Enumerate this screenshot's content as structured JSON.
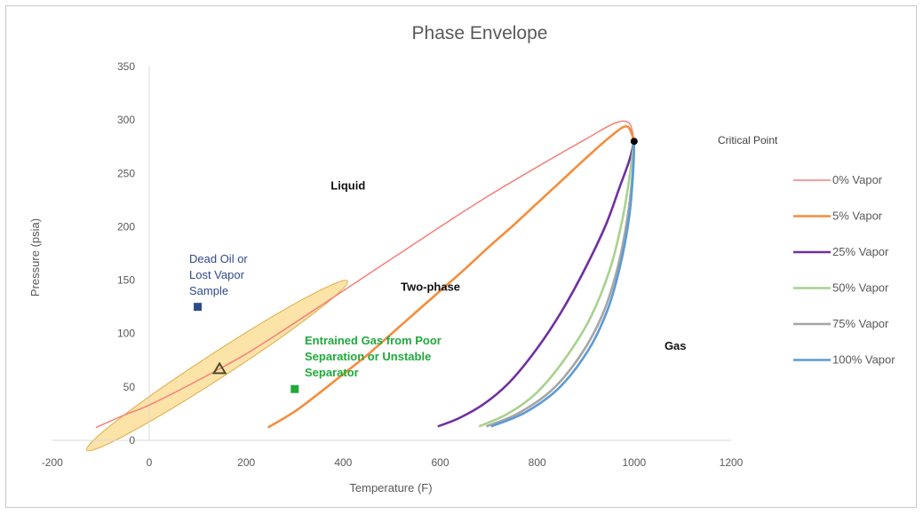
{
  "chart_data": {
    "type": "line",
    "title": "Phase Envelope",
    "xlabel": "Temperature (F)",
    "ylabel": "Pressure (psia)",
    "xlim": [
      -200,
      1200
    ],
    "ylim": [
      0,
      350
    ],
    "x_ticks": [
      -200,
      0,
      200,
      400,
      600,
      800,
      1000,
      1200
    ],
    "y_ticks": [
      0,
      50,
      100,
      150,
      200,
      250,
      300,
      350
    ],
    "x_tick_labels": [
      "-200",
      "0",
      "200",
      "400",
      "600",
      "800",
      "1000",
      "1200"
    ],
    "y_tick_labels": [
      "0",
      "50",
      "100",
      "150",
      "200",
      "250",
      "300",
      "350"
    ],
    "grid": false,
    "legend_position": "right",
    "series": [
      {
        "name": "0% Vapor",
        "color": "#f4817a",
        "x": [
          -110,
          -50,
          0,
          100,
          200,
          300,
          400,
          500,
          600,
          700,
          800,
          900,
          960,
          990,
          1000
        ],
        "y": [
          12,
          24,
          33,
          56,
          81,
          110,
          140,
          170,
          200,
          229,
          256,
          282,
          297,
          297,
          280
        ]
      },
      {
        "name": "5% Vapor",
        "color": "#f58d3c",
        "x": [
          245,
          300,
          350,
          400,
          450,
          500,
          550,
          600,
          650,
          700,
          750,
          800,
          850,
          900,
          950,
          985,
          1000
        ],
        "y": [
          12,
          27,
          44,
          62,
          80,
          100,
          120,
          140,
          160,
          181,
          201,
          222,
          243,
          264,
          284,
          294,
          280
        ]
      },
      {
        "name": "25% Vapor",
        "color": "#7030a0",
        "x": [
          595,
          640,
          690,
          740,
          790,
          840,
          890,
          940,
          970,
          990,
          1000
        ],
        "y": [
          13,
          21,
          34,
          53,
          80,
          113,
          153,
          200,
          237,
          262,
          280
        ]
      },
      {
        "name": "50% Vapor",
        "color": "#a9d18e",
        "x": [
          680,
          740,
          800,
          860,
          910,
          950,
          975,
          990,
          1000
        ],
        "y": [
          13,
          25,
          45,
          78,
          115,
          160,
          205,
          245,
          280
        ]
      },
      {
        "name": "75% Vapor",
        "color": "#a5a5a5",
        "x": [
          695,
          760,
          830,
          890,
          935,
          965,
          985,
          997,
          1000
        ],
        "y": [
          13,
          25,
          47,
          80,
          118,
          160,
          205,
          250,
          280
        ]
      },
      {
        "name": "100% Vapor",
        "color": "#5b9bd5",
        "x": [
          705,
          775,
          845,
          905,
          945,
          972,
          990,
          998,
          1000
        ],
        "y": [
          13,
          26,
          49,
          84,
          122,
          165,
          210,
          252,
          280
        ]
      }
    ],
    "critical_point": {
      "label": "Critical Point",
      "x": 1000,
      "y": 280,
      "color": "#000000"
    },
    "markers": [
      {
        "label": "Dead Oil or Lost Vapor Sample",
        "x": 100,
        "y": 125,
        "color": "#2f4a8a"
      },
      {
        "label": "Entrained Gas from Poor Separation or Unstable Separator",
        "x": 300,
        "y": 48,
        "color": "#1faa3a"
      }
    ],
    "triangle_marker": {
      "x": 145,
      "y": 67
    },
    "highlight_ellipse": {
      "cx": 140,
      "cy": 70,
      "rx": 175,
      "ry": 14,
      "angle_deg": -33,
      "fill": "#fbd98a",
      "stroke": "#e0ad48"
    },
    "regions": [
      {
        "label": "Liquid",
        "x": 410,
        "y": 235
      },
      {
        "label": "Two-phase",
        "x": 580,
        "y": 140
      },
      {
        "label": "Gas",
        "x": 1085,
        "y": 85
      }
    ],
    "annotations": {
      "blue_lines": [
        "Dead Oil or",
        "Lost Vapor",
        "Sample"
      ],
      "green_lines": [
        "Entrained Gas from Poor",
        "Separation or Unstable",
        "Separator"
      ]
    }
  }
}
